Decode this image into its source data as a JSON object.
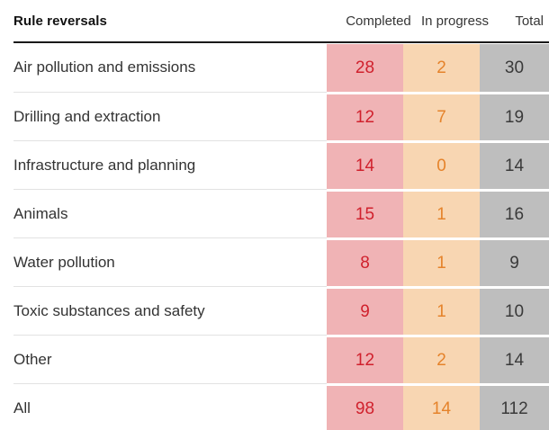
{
  "table": {
    "title": "Rule reversals",
    "columns": {
      "completed_label": "Completed",
      "in_progress_label": "In progress",
      "total_label": "Total"
    },
    "rows": [
      {
        "label": "Air pollution and emissions",
        "completed": "28",
        "in_progress": "2",
        "total": "30"
      },
      {
        "label": "Drilling and extraction",
        "completed": "12",
        "in_progress": "7",
        "total": "19"
      },
      {
        "label": "Infrastructure and planning",
        "completed": "14",
        "in_progress": "0",
        "total": "14"
      },
      {
        "label": "Animals",
        "completed": "15",
        "in_progress": "1",
        "total": "16"
      },
      {
        "label": "Water pollution",
        "completed": "8",
        "in_progress": "1",
        "total": "9"
      },
      {
        "label": "Toxic substances and safety",
        "completed": "9",
        "in_progress": "1",
        "total": "10"
      },
      {
        "label": "Other",
        "completed": "12",
        "in_progress": "2",
        "total": "14"
      },
      {
        "label": "All",
        "completed": "98",
        "in_progress": "14",
        "total": "112"
      }
    ],
    "colors": {
      "completed_bg": "#f0b3b5",
      "completed_text": "#d0212d",
      "in_progress_bg": "#f8d6b2",
      "in_progress_text": "#e5832b",
      "total_bg": "#bebebe",
      "total_text": "#3a3a3a",
      "header_rule": "#1a1a1a",
      "row_separator": "#e2e2e2"
    }
  },
  "chart_data": {
    "type": "table",
    "title": "Rule reversals",
    "categories": [
      "Air pollution and emissions",
      "Drilling and extraction",
      "Infrastructure and planning",
      "Animals",
      "Water pollution",
      "Toxic substances and safety",
      "Other",
      "All"
    ],
    "series": [
      {
        "name": "Completed",
        "values": [
          28,
          12,
          14,
          15,
          8,
          9,
          12,
          98
        ]
      },
      {
        "name": "In progress",
        "values": [
          2,
          7,
          0,
          1,
          1,
          1,
          2,
          14
        ]
      },
      {
        "name": "Total",
        "values": [
          30,
          19,
          14,
          16,
          9,
          10,
          14,
          112
        ]
      }
    ],
    "layout_hints": {
      "value_columns_highlighted": true,
      "grid": "horizontal separators only"
    }
  }
}
